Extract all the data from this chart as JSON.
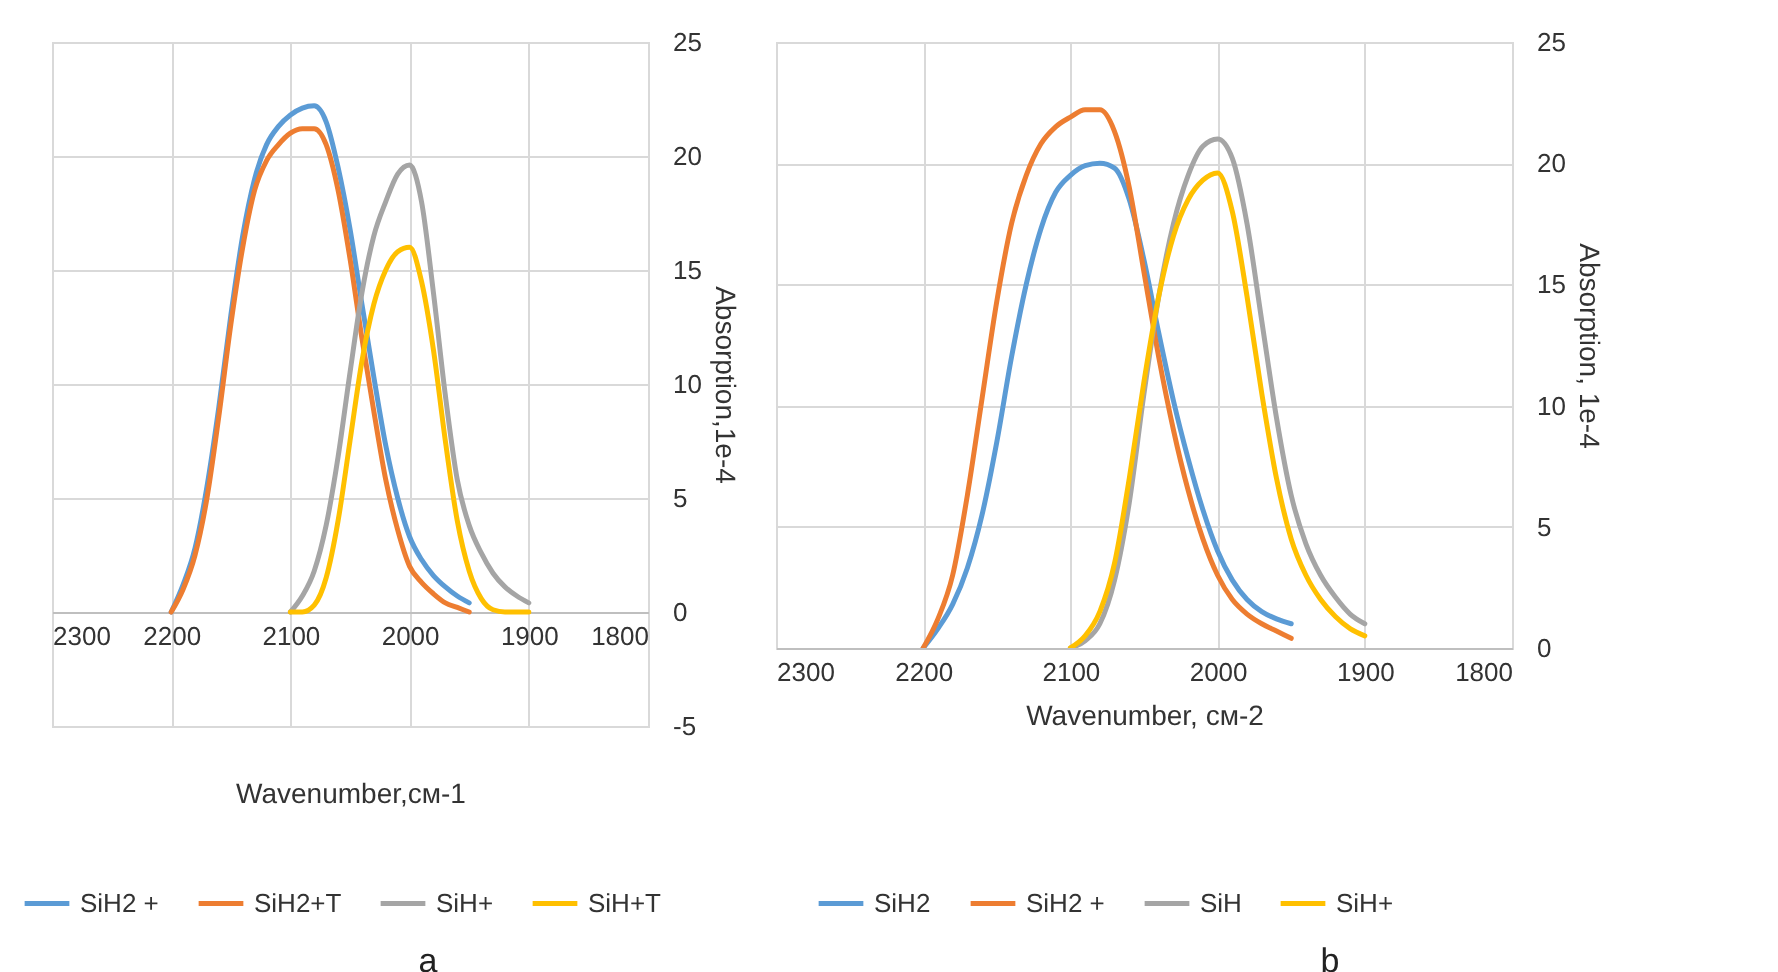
{
  "chart_data": [
    {
      "type": "line",
      "xlabel": "Wavenumber,см-1",
      "ylabel": "Absorption,1e-4",
      "annotations": [
        "a"
      ],
      "xlim": [
        2300,
        1800
      ],
      "xticks": [
        2300,
        2200,
        2100,
        2000,
        1900,
        1800
      ],
      "ylim": [
        -5,
        25
      ],
      "yticks": [
        -5,
        0,
        5,
        10,
        15,
        20,
        25
      ],
      "grid": true,
      "legend": "bottom",
      "series": [
        {
          "name": "SiH2 +",
          "color": "#5b9bd5",
          "x": [
            2200,
            2190,
            2180,
            2170,
            2160,
            2150,
            2140,
            2130,
            2120,
            2110,
            2100,
            2090,
            2080,
            2070,
            2060,
            2050,
            2040,
            2030,
            2020,
            2010,
            2000,
            1990,
            1980,
            1970,
            1960,
            1950
          ],
          "values": [
            0,
            1.2,
            2.8,
            5.5,
            9,
            13,
            16.5,
            19,
            20.5,
            21.3,
            21.8,
            22.1,
            22.2,
            21.5,
            19.5,
            16.8,
            13.5,
            10.3,
            7.3,
            5,
            3.3,
            2.3,
            1.6,
            1.1,
            0.7,
            0.4
          ]
        },
        {
          "name": "SiH2+T",
          "color": "#ed7d31",
          "x": [
            2200,
            2190,
            2180,
            2170,
            2160,
            2150,
            2140,
            2130,
            2120,
            2110,
            2100,
            2090,
            2080,
            2070,
            2060,
            2050,
            2040,
            2030,
            2020,
            2010,
            2000,
            1990,
            1980,
            1970,
            1960,
            1950
          ],
          "values": [
            0,
            1,
            2.5,
            5,
            8.6,
            12.6,
            16,
            18.5,
            19.8,
            20.5,
            21,
            21.2,
            21.2,
            20.5,
            18.5,
            15.5,
            12,
            8.8,
            5.8,
            3.6,
            2,
            1.3,
            0.8,
            0.4,
            0.2,
            0
          ]
        },
        {
          "name": "SiH+",
          "color": "#a5a5a5",
          "x": [
            2100,
            2090,
            2080,
            2070,
            2060,
            2050,
            2040,
            2030,
            2020,
            2010,
            2000,
            1990,
            1980,
            1970,
            1960,
            1950,
            1940,
            1930,
            1920,
            1910,
            1900
          ],
          "values": [
            0,
            0.7,
            1.8,
            3.8,
            6.8,
            10.5,
            14,
            16.5,
            18,
            19.2,
            19.6,
            18,
            14,
            9.5,
            5.8,
            3.8,
            2.6,
            1.7,
            1.1,
            0.7,
            0.4
          ]
        },
        {
          "name": "SiH+T",
          "color": "#ffc000",
          "x": [
            2100,
            2090,
            2080,
            2070,
            2060,
            2050,
            2040,
            2030,
            2020,
            2010,
            2000,
            1990,
            1980,
            1970,
            1960,
            1950,
            1940,
            1930,
            1920,
            1910,
            1900
          ],
          "values": [
            0,
            0,
            0.3,
            1.5,
            4,
            7.5,
            11,
            13.5,
            15,
            15.8,
            16,
            14.5,
            11.5,
            7.5,
            4,
            1.8,
            0.6,
            0.1,
            0,
            0,
            0
          ]
        }
      ]
    },
    {
      "type": "line",
      "xlabel": "Wavenumber, см-2",
      "ylabel": "Absorption, 1e-4",
      "annotations": [
        "b"
      ],
      "xlim": [
        2300,
        1800
      ],
      "xticks": [
        2300,
        2200,
        2100,
        2000,
        1900,
        1800
      ],
      "ylim": [
        0,
        25
      ],
      "yticks": [
        0,
        5,
        10,
        15,
        20,
        25
      ],
      "grid": true,
      "legend": "bottom",
      "series": [
        {
          "name": "SiH2",
          "color": "#5b9bd5",
          "x": [
            2200,
            2190,
            2180,
            2170,
            2160,
            2150,
            2140,
            2130,
            2120,
            2110,
            2100,
            2090,
            2080,
            2070,
            2060,
            2050,
            2040,
            2030,
            2020,
            2010,
            2000,
            1990,
            1980,
            1970,
            1960,
            1950
          ],
          "values": [
            0,
            0.8,
            1.8,
            3.3,
            5.5,
            8.5,
            12,
            15,
            17.3,
            18.8,
            19.5,
            19.9,
            20,
            19.8,
            18.5,
            16,
            13,
            10.2,
            7.8,
            5.7,
            4,
            2.8,
            2,
            1.5,
            1.2,
            1
          ]
        },
        {
          "name": "SiH2 +",
          "color": "#ed7d31",
          "x": [
            2200,
            2190,
            2180,
            2170,
            2160,
            2150,
            2140,
            2130,
            2120,
            2110,
            2100,
            2090,
            2080,
            2070,
            2060,
            2050,
            2040,
            2030,
            2020,
            2010,
            2000,
            1990,
            1980,
            1970,
            1960,
            1950
          ],
          "values": [
            0,
            1.2,
            3,
            6.3,
            10.3,
            14.3,
            17.5,
            19.5,
            20.8,
            21.5,
            21.9,
            22.2,
            22.2,
            21.3,
            19,
            15.5,
            12,
            9,
            6.5,
            4.5,
            3,
            2,
            1.4,
            1,
            0.7,
            0.4
          ]
        },
        {
          "name": "SiH",
          "color": "#a5a5a5",
          "x": [
            2100,
            2090,
            2080,
            2070,
            2060,
            2050,
            2040,
            2030,
            2020,
            2010,
            2000,
            1990,
            1980,
            1970,
            1960,
            1950,
            1940,
            1930,
            1920,
            1910,
            1900
          ],
          "values": [
            0,
            0.3,
            1,
            2.8,
            6,
            10.5,
            14.5,
            17.5,
            19.5,
            20.7,
            21,
            20.2,
            17.5,
            13.5,
            9.5,
            6.3,
            4.3,
            3,
            2.1,
            1.4,
            1
          ]
        },
        {
          "name": "SiH+",
          "color": "#ffc000",
          "x": [
            2100,
            2090,
            2080,
            2070,
            2060,
            2050,
            2040,
            2030,
            2020,
            2010,
            2000,
            1990,
            1980,
            1970,
            1960,
            1950,
            1940,
            1930,
            1920,
            1910,
            1900
          ],
          "values": [
            0,
            0.5,
            1.5,
            3.5,
            7,
            11,
            14.5,
            17,
            18.5,
            19.3,
            19.6,
            18,
            14.5,
            10.5,
            7,
            4.5,
            3,
            2,
            1.3,
            0.8,
            0.5
          ]
        }
      ]
    }
  ]
}
